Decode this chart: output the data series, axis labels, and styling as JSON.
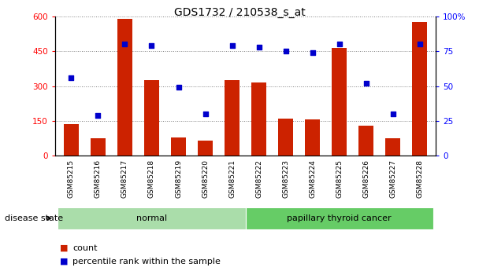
{
  "title": "GDS1732 / 210538_s_at",
  "samples": [
    "GSM85215",
    "GSM85216",
    "GSM85217",
    "GSM85218",
    "GSM85219",
    "GSM85220",
    "GSM85221",
    "GSM85222",
    "GSM85223",
    "GSM85224",
    "GSM85225",
    "GSM85226",
    "GSM85227",
    "GSM85228"
  ],
  "counts": [
    135,
    75,
    590,
    325,
    80,
    65,
    325,
    315,
    160,
    155,
    465,
    130,
    75,
    575
  ],
  "percentiles": [
    56,
    29,
    80,
    79,
    49,
    30,
    79,
    78,
    75,
    74,
    80,
    52,
    30,
    80
  ],
  "groups": [
    {
      "label": "normal",
      "start": 0,
      "end": 7,
      "color": "#aaddaa"
    },
    {
      "label": "papillary thyroid cancer",
      "start": 7,
      "end": 14,
      "color": "#66cc66"
    }
  ],
  "disease_state_label": "disease state",
  "ylim_left": [
    0,
    600
  ],
  "ylim_right": [
    0,
    100
  ],
  "yticks_left": [
    0,
    150,
    300,
    450,
    600
  ],
  "yticks_right": [
    0,
    25,
    50,
    75,
    100
  ],
  "bar_color": "#cc2200",
  "dot_color": "#0000cc",
  "xtick_bg_color": "#c8c8c8",
  "legend_count_label": "count",
  "legend_percentile_label": "percentile rank within the sample",
  "title_fontsize": 10,
  "tick_fontsize": 7.5,
  "sample_fontsize": 6.5,
  "label_fontsize": 8
}
